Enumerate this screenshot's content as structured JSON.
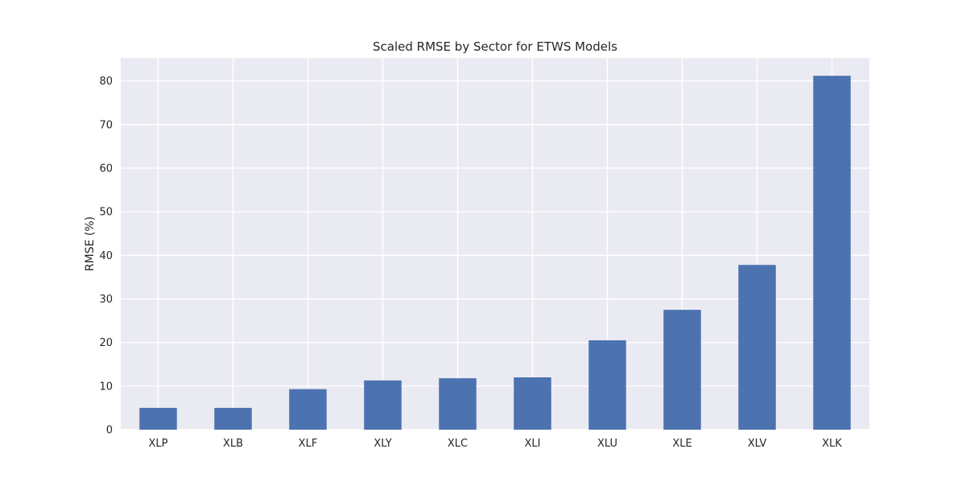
{
  "chart_data": {
    "type": "bar",
    "title": "Scaled RMSE by Sector for ETWS Models",
    "xlabel": "",
    "ylabel": "RMSE (%)",
    "categories": [
      "XLP",
      "XLB",
      "XLF",
      "XLY",
      "XLC",
      "XLI",
      "XLU",
      "XLE",
      "XLV",
      "XLK"
    ],
    "values": [
      5.0,
      5.0,
      9.3,
      11.3,
      11.8,
      12.0,
      20.5,
      27.5,
      37.8,
      81.2
    ],
    "ylim": [
      0,
      85.3
    ],
    "yticks": [
      0,
      10,
      20,
      30,
      40,
      50,
      60,
      70,
      80
    ],
    "grid": true,
    "legend": "none",
    "colors": {
      "bar": "#4c72b0",
      "plot_background": "#eaeaf2",
      "grid": "#ffffff",
      "text": "#262626"
    }
  }
}
